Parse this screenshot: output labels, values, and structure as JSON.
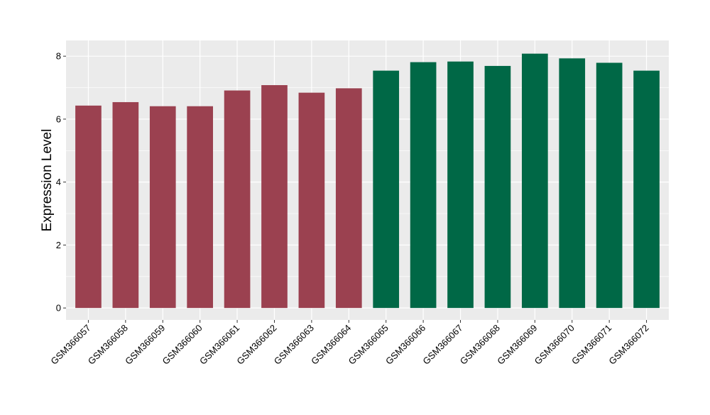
{
  "chart_data": {
    "type": "bar",
    "title": "",
    "xlabel": "",
    "ylabel": "Expression Level",
    "categories": [
      "GSM366057",
      "GSM366058",
      "GSM366059",
      "GSM366060",
      "GSM366061",
      "GSM366062",
      "GSM366063",
      "GSM366064",
      "GSM366065",
      "GSM366066",
      "GSM366067",
      "GSM366068",
      "GSM366069",
      "GSM366070",
      "GSM366071",
      "GSM366072"
    ],
    "values": [
      6.43,
      6.54,
      6.41,
      6.41,
      6.91,
      7.08,
      6.84,
      6.98,
      7.54,
      7.81,
      7.83,
      7.69,
      8.08,
      7.93,
      7.79,
      7.54
    ],
    "groups": [
      "a",
      "a",
      "a",
      "a",
      "a",
      "a",
      "a",
      "a",
      "b",
      "b",
      "b",
      "b",
      "b",
      "b",
      "b",
      "b"
    ],
    "group_colors": {
      "a": "#9B4150",
      "b": "#006846"
    },
    "yticks": [
      0,
      2,
      4,
      6,
      8
    ],
    "ylim": [
      -0.38,
      8.5
    ],
    "grid": true,
    "legend": "none",
    "panel_background": "#EBEBEB"
  }
}
